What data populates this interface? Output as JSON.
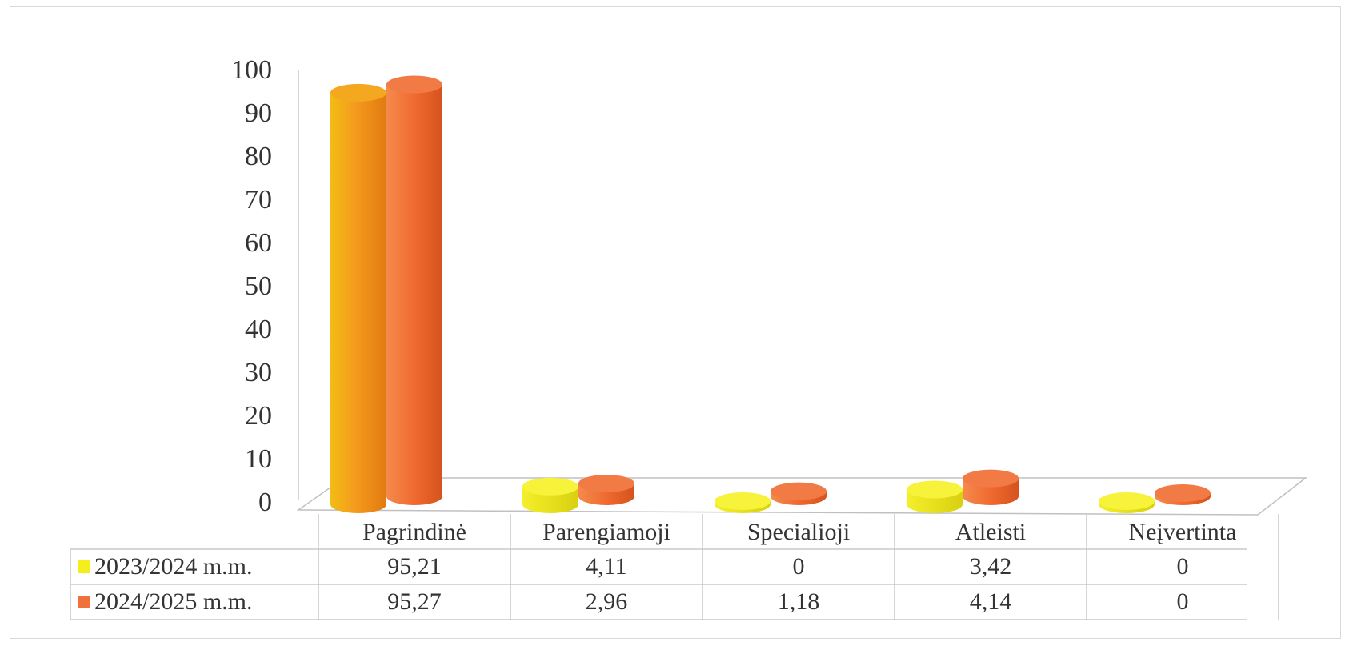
{
  "chart_data": {
    "type": "bar",
    "style": "3d-cylinder",
    "categories": [
      "Pagrindinė",
      "Parengiamoji",
      "Specialioji",
      "Atleisti",
      "Neįvertinta"
    ],
    "series": [
      {
        "name": "2023/2024 m.m.",
        "color": "#f5ee1c",
        "values": [
          95.21,
          4.11,
          0,
          3.42,
          0
        ],
        "labels": [
          "95,21",
          "4,11",
          "0",
          "3,42",
          "0"
        ]
      },
      {
        "name": "2024/2025 m.m.",
        "color": "#f0723a",
        "values": [
          95.27,
          2.96,
          1.18,
          4.14,
          0
        ],
        "labels": [
          "95,27",
          "2,96",
          "1,18",
          "4,14",
          "0"
        ]
      }
    ],
    "ylim": [
      0,
      100
    ],
    "yticks": [
      "0",
      "10",
      "20",
      "30",
      "40",
      "50",
      "60",
      "70",
      "80",
      "90",
      "100"
    ],
    "legend_placement": "data-table",
    "grid": false,
    "title": "",
    "xlabel": "",
    "ylabel": ""
  }
}
